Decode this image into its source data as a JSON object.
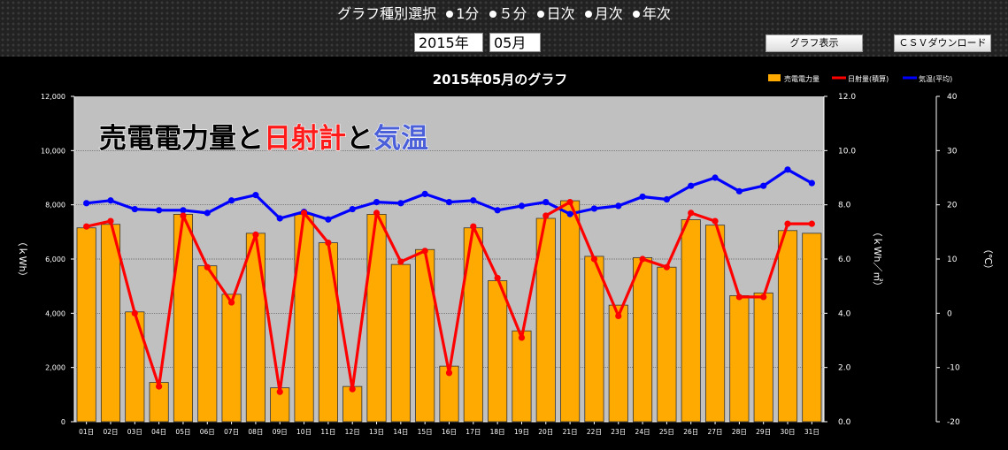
{
  "header": {
    "selector_label": "グラフ種別選択",
    "options": [
      "1分",
      "５分",
      "日次",
      "月次",
      "年次"
    ],
    "year_select": "2015年",
    "month_select": "05月",
    "show_button": "グラフ表示",
    "csv_button": "ＣＳＶダウンロード"
  },
  "overlay_title": {
    "part1": "売電電力量と",
    "part2": "日射計",
    "part3": "と",
    "part4": "気温"
  },
  "colors": {
    "bar": "#ffaa00",
    "solar": "#ff0000",
    "temp": "#0000ff",
    "plot_bg": "#c0c0c0"
  },
  "chart_data": {
    "type": "bar",
    "title": "2015年05月のグラフ",
    "categories": [
      "01日",
      "02日",
      "03日",
      "04日",
      "05日",
      "06日",
      "07日",
      "08日",
      "09日",
      "10日",
      "11日",
      "12日",
      "13日",
      "14日",
      "15日",
      "16日",
      "17日",
      "18日",
      "19日",
      "20日",
      "21日",
      "22日",
      "23日",
      "24日",
      "25日",
      "26日",
      "27日",
      "28日",
      "29日",
      "30日",
      "31日"
    ],
    "series": [
      {
        "name": "売電電力量",
        "type": "bar",
        "axis": "left",
        "values": [
          7150,
          7280,
          4050,
          1450,
          7650,
          5750,
          4700,
          6950,
          1250,
          7650,
          6600,
          1300,
          7650,
          5800,
          6350,
          2050,
          7150,
          5200,
          3350,
          7500,
          8150,
          6100,
          4300,
          6050,
          5700,
          7450,
          7250,
          4650,
          4750,
          7050,
          6950
        ]
      },
      {
        "name": "日射量(積算)",
        "type": "line",
        "axis": "right1",
        "values": [
          7.2,
          7.4,
          4.0,
          1.3,
          7.6,
          5.7,
          4.4,
          6.9,
          1.1,
          7.7,
          6.6,
          1.2,
          7.7,
          5.9,
          6.3,
          1.8,
          7.2,
          5.3,
          3.1,
          7.6,
          8.1,
          6.0,
          3.9,
          6.0,
          5.7,
          7.7,
          7.4,
          4.6,
          4.6,
          7.3,
          7.3
        ]
      },
      {
        "name": "気温(平均)",
        "type": "line",
        "axis": "right2",
        "values": [
          20.3,
          20.8,
          19.2,
          19.0,
          19.0,
          18.5,
          20.8,
          21.8,
          17.5,
          18.7,
          17.3,
          19.2,
          20.5,
          20.3,
          22.0,
          20.5,
          20.8,
          19.0,
          19.8,
          20.5,
          18.3,
          19.3,
          19.8,
          21.5,
          21.0,
          23.5,
          25.0,
          22.5,
          23.5,
          26.5,
          24.0
        ]
      }
    ],
    "axes": {
      "left": {
        "label": "（ｋWh）",
        "min": 0,
        "max": 12000,
        "ticks": [
          "0",
          "2,000",
          "4,000",
          "6,000",
          "8,000",
          "10,000",
          "12,000"
        ]
      },
      "right1": {
        "label": "（ｋWh／㎡）",
        "min": 0,
        "max": 12,
        "ticks": [
          "0.0",
          "2.0",
          "4.0",
          "6.0",
          "8.0",
          "10.0",
          "12.0"
        ]
      },
      "right2": {
        "label": "（℃）",
        "min": -20,
        "max": 40,
        "ticks": [
          "-20",
          "-10",
          "0",
          "10",
          "20",
          "30",
          "40"
        ]
      }
    },
    "grid": true,
    "legend_position": "top-right"
  }
}
